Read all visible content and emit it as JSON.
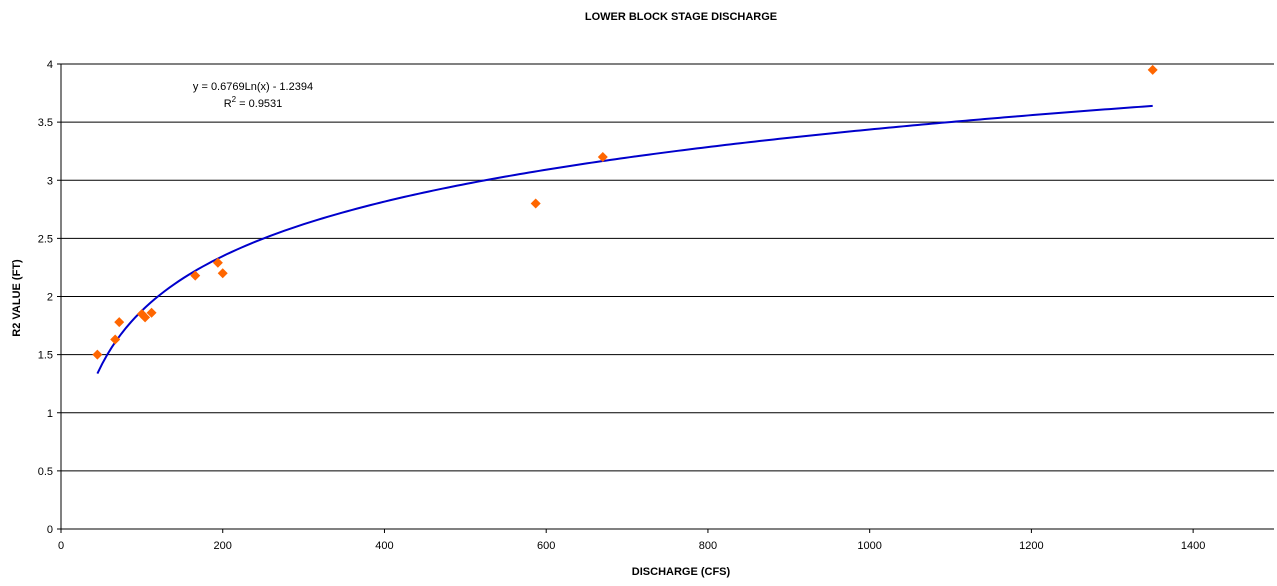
{
  "chart_data": {
    "type": "scatter",
    "title": "LOWER BLOCK STAGE DISCHARGE",
    "xlabel": "DISCHARGE (CFS)",
    "ylabel": "R2 VALUE (FT)",
    "xlim": [
      0,
      1500
    ],
    "ylim": [
      0,
      4
    ],
    "x_ticks": [
      0,
      200,
      400,
      600,
      800,
      1000,
      1200,
      1400
    ],
    "y_ticks": [
      0,
      0.5,
      1,
      1.5,
      2,
      2.5,
      3,
      3.5,
      4
    ],
    "x_tick_labels": [
      "0",
      "200",
      "400",
      "600",
      "800",
      "1000",
      "1200",
      "1400"
    ],
    "y_tick_labels": [
      "0",
      "0.5",
      "1",
      "1.5",
      "2",
      "2.5",
      "3",
      "3.5",
      "4"
    ],
    "grid": "horizontal",
    "series": [
      {
        "color": "#ff6600",
        "marker": "diamond",
        "points": [
          {
            "x": 45,
            "y": 1.5
          },
          {
            "x": 67,
            "y": 1.63
          },
          {
            "x": 72,
            "y": 1.78
          },
          {
            "x": 100,
            "y": 1.85
          },
          {
            "x": 104,
            "y": 1.82
          },
          {
            "x": 112,
            "y": 1.86
          },
          {
            "x": 166,
            "y": 2.18
          },
          {
            "x": 194,
            "y": 2.29
          },
          {
            "x": 200,
            "y": 2.2
          },
          {
            "x": 587,
            "y": 2.8
          },
          {
            "x": 670,
            "y": 3.2
          },
          {
            "x": 1350,
            "y": 3.95
          }
        ]
      }
    ],
    "trendline": {
      "type": "logarithmic",
      "a": 0.6769,
      "b": -1.2394,
      "x_range": [
        45,
        1350
      ],
      "color": "#0000cc",
      "equation_label": "y = 0.6769Ln(x) - 1.2394",
      "r2_prefix": "R",
      "r2_sup": "2",
      "r2_value": " = 0.9531"
    }
  }
}
